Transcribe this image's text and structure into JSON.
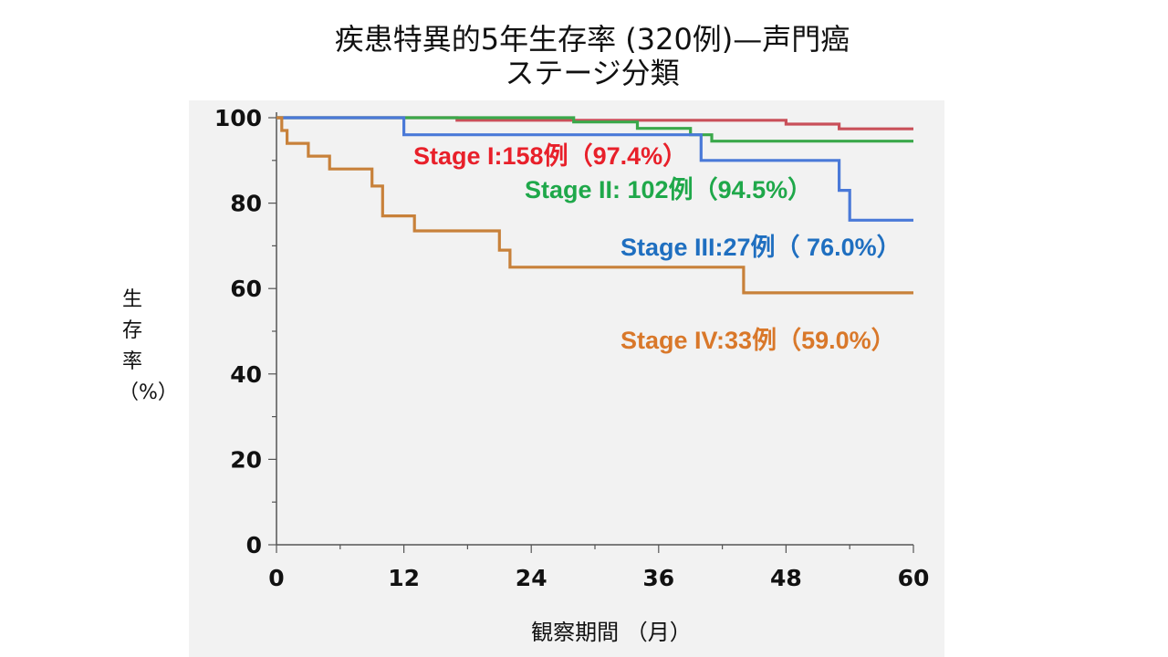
{
  "chart_data": {
    "type": "line",
    "title": "疾患特異的5年生存率 (320例)—声門癌",
    "subtitle": "ステージ分類",
    "xlabel": "観察期間 （月）",
    "ylabel": "生存率（%）",
    "ylabel_chars": [
      "生",
      "存",
      "率",
      "（%）"
    ],
    "xlim": [
      0,
      60
    ],
    "ylim": [
      0,
      100
    ],
    "x_ticks": [
      0,
      12,
      24,
      36,
      48,
      60
    ],
    "y_ticks": [
      0,
      20,
      40,
      60,
      80,
      100
    ],
    "grid": false,
    "series": [
      {
        "name": "Stage I:158例（97.4%）",
        "color": "#c9505a",
        "label_color": "#e8202a",
        "points": [
          [
            0,
            100
          ],
          [
            17,
            100
          ],
          [
            17,
            99.4
          ],
          [
            48,
            99.4
          ],
          [
            48,
            98.5
          ],
          [
            53,
            98.5
          ],
          [
            53,
            97.4
          ],
          [
            60,
            97.4
          ]
        ]
      },
      {
        "name": "Stage II: 102例（94.5%）",
        "color": "#3aa84a",
        "label_color": "#1fa84a",
        "points": [
          [
            0,
            100
          ],
          [
            28,
            100
          ],
          [
            28,
            99
          ],
          [
            34,
            99
          ],
          [
            34,
            97.5
          ],
          [
            39,
            97.5
          ],
          [
            39,
            96
          ],
          [
            41,
            96
          ],
          [
            41,
            94.5
          ],
          [
            60,
            94.5
          ]
        ]
      },
      {
        "name": "Stage III:27例（ 76.0%）",
        "color": "#4a79d8",
        "label_color": "#1f6fc0",
        "points": [
          [
            0,
            100
          ],
          [
            12,
            100
          ],
          [
            12,
            96
          ],
          [
            40,
            96
          ],
          [
            40,
            90
          ],
          [
            53,
            90
          ],
          [
            53,
            83
          ],
          [
            54,
            83
          ],
          [
            54,
            76
          ],
          [
            60,
            76
          ]
        ]
      },
      {
        "name": "Stage IV:33例（59.0%）",
        "color": "#c8813a",
        "label_color": "#d9782a",
        "points": [
          [
            0,
            100
          ],
          [
            0.5,
            100
          ],
          [
            0.5,
            97
          ],
          [
            1,
            97
          ],
          [
            1,
            94
          ],
          [
            3,
            94
          ],
          [
            3,
            91
          ],
          [
            5,
            91
          ],
          [
            5,
            88
          ],
          [
            9,
            88
          ],
          [
            9,
            84
          ],
          [
            10,
            84
          ],
          [
            10,
            77
          ],
          [
            13,
            77
          ],
          [
            13,
            73.5
          ],
          [
            21,
            73.5
          ],
          [
            21,
            69
          ],
          [
            22,
            69
          ],
          [
            22,
            65
          ],
          [
            44,
            65
          ],
          [
            44,
            59
          ],
          [
            60,
            59
          ]
        ]
      }
    ]
  }
}
